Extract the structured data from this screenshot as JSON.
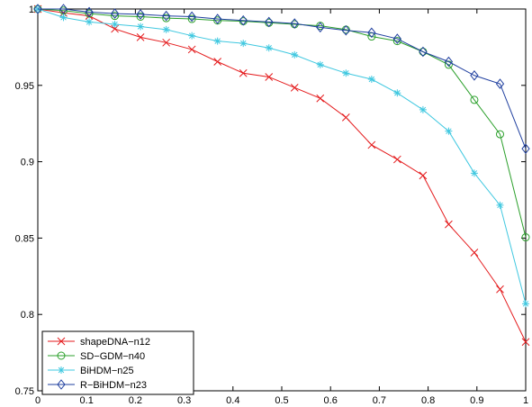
{
  "chart_data": {
    "type": "line",
    "title": "",
    "xlabel": "",
    "ylabel": "",
    "xlim": [
      0,
      1
    ],
    "ylim": [
      0.75,
      1
    ],
    "xticks": [
      0,
      0.1,
      0.2,
      0.3,
      0.4,
      0.5,
      0.6,
      0.7,
      0.8,
      0.9,
      1
    ],
    "xtick_labels": [
      "0",
      "0.1",
      "0.2",
      "0.3",
      "0.4",
      "0.5",
      "0.6",
      "0.7",
      "0.8",
      "0.9",
      "1"
    ],
    "yticks": [
      0.75,
      0.8,
      0.85,
      0.9,
      0.95,
      1
    ],
    "ytick_labels": [
      "0.75",
      "0.8",
      "0.85",
      "0.9",
      "0.95",
      "1"
    ],
    "grid": false,
    "legend_position": "bottom-left",
    "x": [
      0,
      0.0526,
      0.1053,
      0.1579,
      0.2105,
      0.2632,
      0.3158,
      0.3684,
      0.4211,
      0.4737,
      0.5263,
      0.5789,
      0.6316,
      0.6842,
      0.7368,
      0.7895,
      0.8421,
      0.8947,
      0.9474,
      1.0
    ],
    "series": [
      {
        "name": "shapeDNA−n12",
        "color": "#e41a1c",
        "marker": "x",
        "values": [
          1.0,
          0.9975,
          0.9955,
          0.987,
          0.9815,
          0.978,
          0.9735,
          0.9655,
          0.958,
          0.9555,
          0.9485,
          0.9415,
          0.929,
          0.911,
          0.9015,
          0.891,
          0.859,
          0.8405,
          0.8165,
          0.782
        ]
      },
      {
        "name": "SD−GDM−n40",
        "color": "#2ca02c",
        "marker": "o",
        "values": [
          1.0,
          0.999,
          0.997,
          0.9955,
          0.995,
          0.994,
          0.9935,
          0.9925,
          0.992,
          0.991,
          0.99,
          0.989,
          0.9865,
          0.982,
          0.979,
          0.972,
          0.9635,
          0.9405,
          0.918,
          0.8505
        ]
      },
      {
        "name": "BiHDM−n25",
        "color": "#40c8e0",
        "marker": "*",
        "values": [
          1.0,
          0.9945,
          0.9915,
          0.99,
          0.9885,
          0.9865,
          0.9825,
          0.979,
          0.9775,
          0.9745,
          0.97,
          0.9635,
          0.958,
          0.954,
          0.945,
          0.934,
          0.92,
          0.8925,
          0.8715,
          0.807
        ]
      },
      {
        "name": "R−BiHDM−n23",
        "color": "#1f3f9f",
        "marker": "d",
        "values": [
          1.0,
          1.0,
          0.998,
          0.997,
          0.9965,
          0.9955,
          0.995,
          0.9935,
          0.9925,
          0.9915,
          0.9905,
          0.988,
          0.986,
          0.9845,
          0.9805,
          0.972,
          0.9655,
          0.9565,
          0.951,
          0.9085
        ]
      }
    ]
  }
}
